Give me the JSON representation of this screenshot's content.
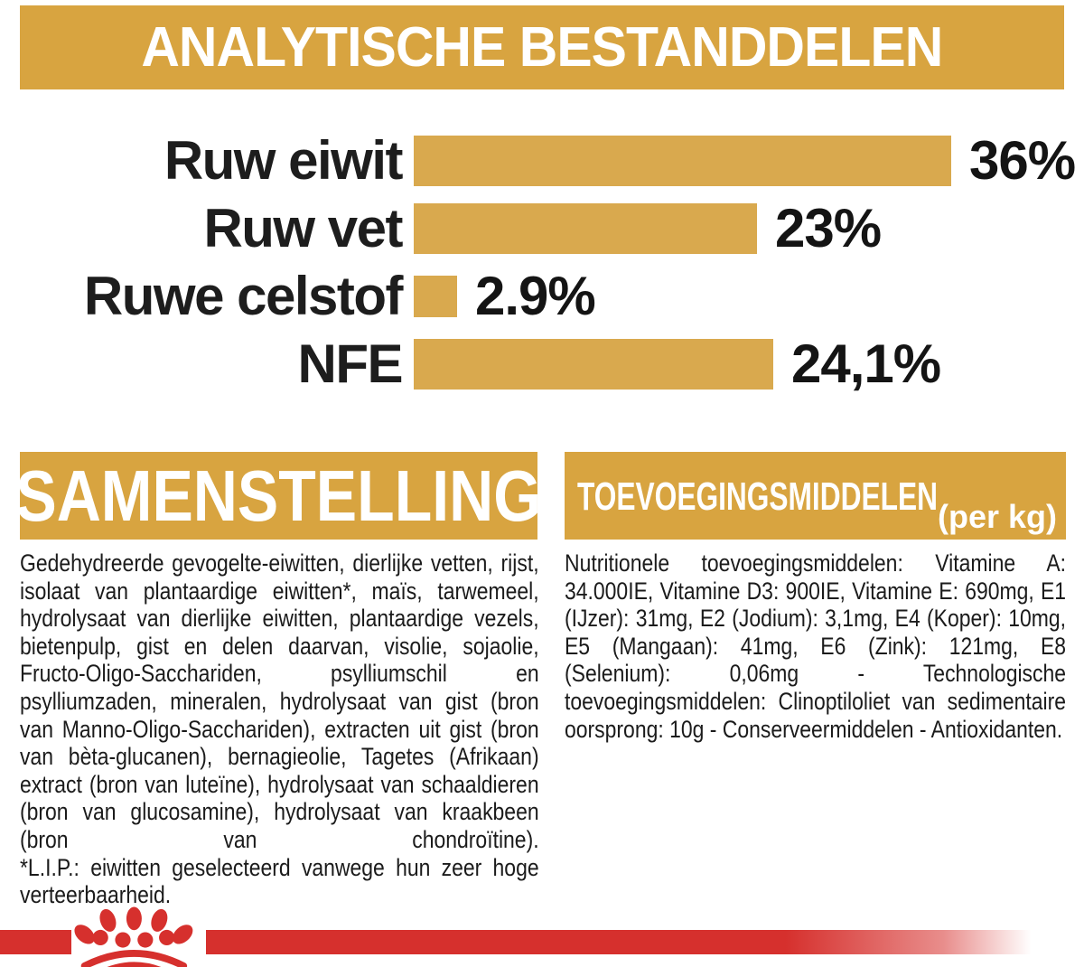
{
  "colors": {
    "gold_banner": "#D8A440",
    "gold_bar": "#D9A94E",
    "red": "#D6302D",
    "text": "#1B1B1B",
    "background": "#FFFFFF"
  },
  "chart_data": {
    "type": "bar",
    "orientation": "horizontal",
    "title": "ANALYTISCHE BESTANDDELEN",
    "categories": [
      "Ruw eiwit",
      "Ruw vet",
      "Ruwe celstof",
      "NFE"
    ],
    "values": [
      36,
      23,
      2.9,
      24.1
    ],
    "value_labels": [
      "36%",
      "23%",
      "2.9%",
      "24,1%"
    ],
    "xlim": [
      0,
      36.5
    ],
    "grid": false,
    "legend": false,
    "bar_color": "#D9A94E"
  },
  "samenstelling": {
    "title": "SAMENSTELLING",
    "body": "Gedehydreerde gevogelte-eiwitten, dierlijke vetten, rijst, isolaat van plantaardige eiwitten*, maïs, tarwemeel, hydrolysaat van dierlijke eiwitten, plantaardige vezels, bietenpulp, gist en delen daarvan, visolie, sojaolie, Fructo-Oligo-Sacchariden, psylliumschil en psylliumzaden, mineralen, hydrolysaat van gist (bron van Manno-Oligo-Sacchariden), extracten uit gist (bron van bèta-glucanen), bernagieolie, Tagetes (Afrikaan) extract (bron van luteïne), hydrolysaat van schaaldieren (bron van glucosamine), hydrolysaat van kraakbeen (bron van chondroïtine).",
    "footnote": "*L.I.P.: eiwitten geselecteerd vanwege hun zeer hoge verteerbaarheid."
  },
  "toevoegingsmiddelen": {
    "title": "TOEVOEGINGSMIDDELEN",
    "subtitle": "(per kg)",
    "body": "Nutritionele toevoegingsmiddelen: Vitamine A: 34.000IE, Vitamine D3: 900IE, Vitamine E: 690mg, E1 (IJzer): 31mg, E2 (Jodium): 3,1mg, E4 (Koper): 10mg, E5 (Mangaan): 41mg, E6 (Zink): 121mg, E8 (Selenium): 0,06mg - Technologische toevoegingsmiddelen: Clinoptiloliet van sedimentaire oorsprong: 10g - Conserveermiddelen - Antioxidanten."
  },
  "footer": {
    "logo": "royal-canin-crown-paw-logo"
  }
}
